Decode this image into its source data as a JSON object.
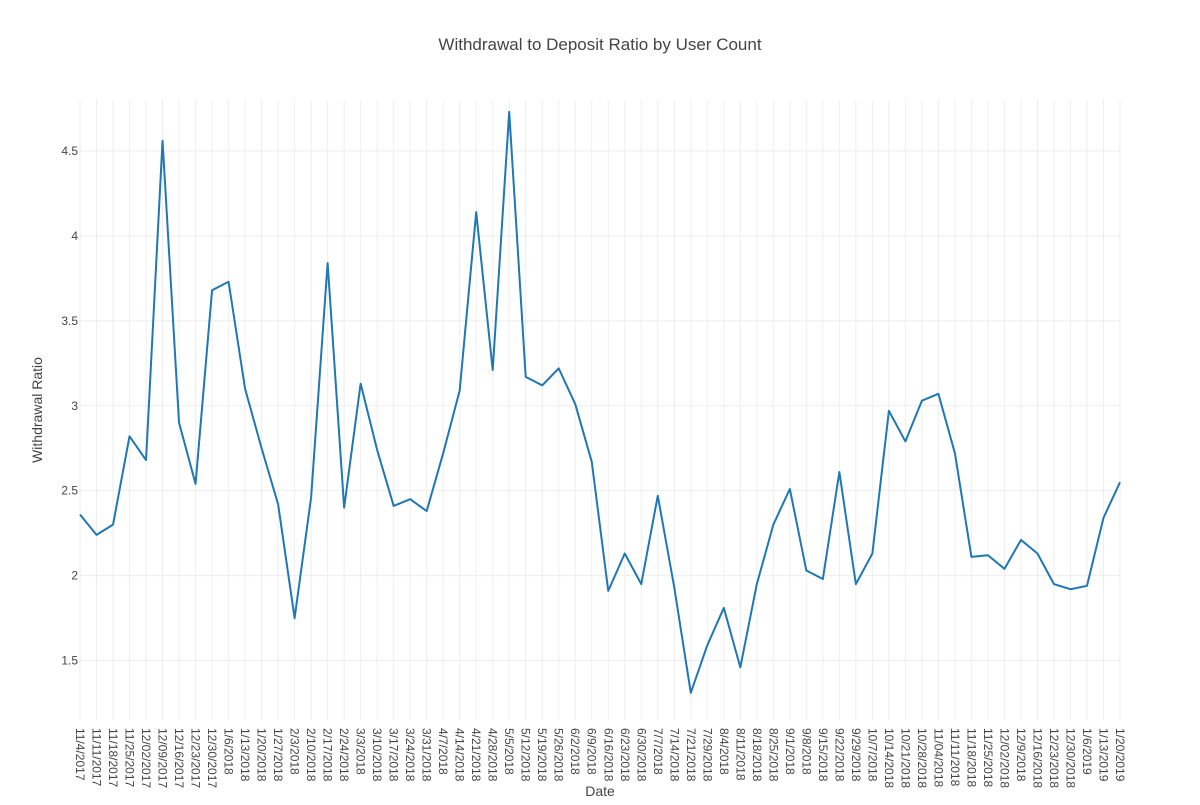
{
  "chart_data": {
    "type": "line",
    "title": "Withdrawal to Deposit Ratio by User Count",
    "xlabel": "Date",
    "ylabel": "Withdrawal Ratio",
    "grid": true,
    "ylim": [
      1.15,
      4.8
    ],
    "yticks": [
      "1.5",
      "2",
      "2.5",
      "3",
      "3.5",
      "4",
      "4.5"
    ],
    "line_color": "#1f77b4",
    "categories": [
      "11/4/2017",
      "11/11/2017",
      "11/18/2017",
      "11/25/2017",
      "12/02/2017",
      "12/09/2017",
      "12/16/2017",
      "12/23/2017",
      "12/30/2017",
      "1/6/2018",
      "1/13/2018",
      "1/20/2018",
      "1/27/2018",
      "2/3/2018",
      "2/10/2018",
      "2/17/2018",
      "2/24/2018",
      "3/3/2018",
      "3/10/2018",
      "3/17/2018",
      "3/24/2018",
      "3/31/2018",
      "4/7/2018",
      "4/14/2018",
      "4/21/2018",
      "4/28/2018",
      "5/5/2018",
      "5/12/2018",
      "5/19/2018",
      "5/26/2018",
      "6/2/2018",
      "6/9/2018",
      "6/16/2018",
      "6/23/2018",
      "6/30/2018",
      "7/7/2018",
      "7/14/2018",
      "7/21/2018",
      "7/29/2018",
      "8/4/2018",
      "8/11/2018",
      "8/18/2018",
      "8/25/2018",
      "9/1/2018",
      "9/8/2018",
      "9/15/2018",
      "9/22/2018",
      "9/29/2018",
      "10/7/2018",
      "10/14/2018",
      "10/21/2018",
      "10/28/2018",
      "11/04/2018",
      "11/11/2018",
      "11/18/2018",
      "11/25/2018",
      "12/02/2018",
      "12/9/2018",
      "12/16/2018",
      "12/23/2018",
      "12/30/2018",
      "1/6/2019",
      "1/13/2019",
      "1/20/2019"
    ],
    "series": [
      {
        "values": [
          2.36,
          2.24,
          2.3,
          2.82,
          2.68,
          4.56,
          2.9,
          2.54,
          3.68,
          3.73,
          3.1,
          2.75,
          2.42,
          1.75,
          2.46,
          3.84,
          2.4,
          3.13,
          2.74,
          2.41,
          2.45,
          2.38,
          2.72,
          3.09,
          4.14,
          3.21,
          4.73,
          3.17,
          3.12,
          3.22,
          3.01,
          2.67,
          1.91,
          2.13,
          1.95,
          2.47,
          1.93,
          1.31,
          1.59,
          1.81,
          1.46,
          1.95,
          2.3,
          2.51,
          2.03,
          1.98,
          2.61,
          1.95,
          2.13,
          2.97,
          2.79,
          3.03,
          3.07,
          2.72,
          2.11,
          2.12,
          2.04,
          2.21,
          2.13,
          1.95,
          1.92,
          1.94,
          2.34,
          2.55
        ]
      }
    ]
  }
}
